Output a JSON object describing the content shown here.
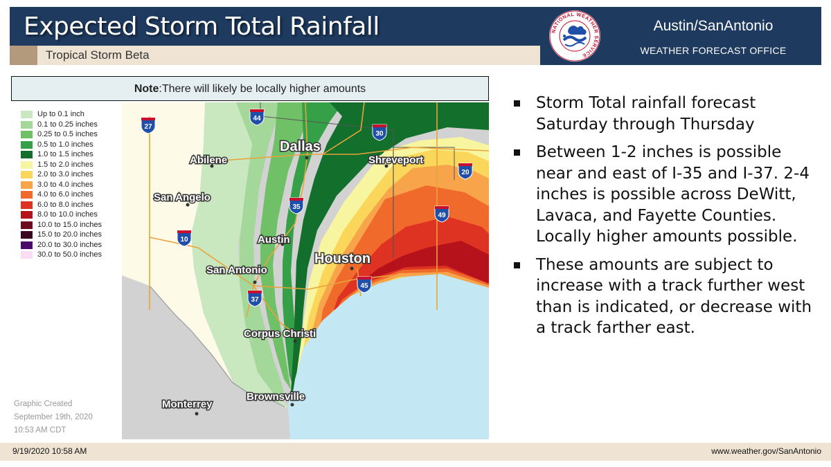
{
  "header": {
    "title": "Expected Storm Total Rainfall",
    "subtitle": "Tropical Storm Beta",
    "office_name": "Austin/SanAntonio",
    "office_subtitle": "WEATHER FORECAST OFFICE",
    "logo_text": "NATIONAL WEATHER SERVICE"
  },
  "map": {
    "note_label": "Note",
    "note_text": ":There will likely be locally higher amounts",
    "legend": [
      {
        "label": "Up to 0.1 inch",
        "color": "#c9e8c0"
      },
      {
        "label": "0.1 to 0.25 inches",
        "color": "#a4d89a"
      },
      {
        "label": "0.25 to 0.5 inches",
        "color": "#6fc066"
      },
      {
        "label": "0.5 to 1.0 inches",
        "color": "#35a047"
      },
      {
        "label": "1.0 to 1.5 inches",
        "color": "#136f2c"
      },
      {
        "label": "1.5 to 2.0 inches",
        "color": "#f8f5a0"
      },
      {
        "label": "2.0 to 3.0 inches",
        "color": "#fad65a"
      },
      {
        "label": "3.0 to 4.0 inches",
        "color": "#f7a44a"
      },
      {
        "label": "4.0 to 6.0 inches",
        "color": "#ef6a2b"
      },
      {
        "label": "6.0 to 8.0 inches",
        "color": "#de3222"
      },
      {
        "label": "8.0 to 10.0 inches",
        "color": "#b5121b"
      },
      {
        "label": "10.0 to 15.0 inches",
        "color": "#6e0c1f"
      },
      {
        "label": "15.0 to 20.0 inches",
        "color": "#3a0820"
      },
      {
        "label": "20.0 to 30.0 inches",
        "color": "#4b0a6b"
      },
      {
        "label": "30.0 to 50.0 inches",
        "color": "#fbdcf3"
      }
    ],
    "cities": {
      "dallas": "Dallas",
      "abilene": "Abilene",
      "shreveport": "Shreveport",
      "san_angelo": "San Angelo",
      "austin": "Austin",
      "houston": "Houston",
      "san_antonio": "San Antonio",
      "corpus_christi": "Corpus Christi",
      "brownsville": "Brownsville",
      "monterrey": "Monterrey"
    },
    "shields": {
      "i44": "44",
      "i27": "27",
      "i30": "30",
      "i20": "20",
      "i35": "35",
      "i49": "49",
      "i10": "10",
      "i45": "45",
      "i37": "37"
    },
    "created_lines": [
      "Graphic Created",
      "September 19th, 2020",
      "10:53 AM CDT"
    ]
  },
  "bullets": [
    "Storm Total rainfall forecast Saturday through Thursday",
    "Between 1-2 inches is possible near and east of I-35 and I-37. 2-4 inches is possible across DeWitt, Lavaca, and Fayette Counties. Locally higher amounts possible.",
    "These amounts are subject to increase with a track further west than is indicated, or decrease with a track farther east."
  ],
  "footer": {
    "timestamp": "9/19/2020 10:58 AM",
    "website": "www.weather.gov/SanAntonio"
  }
}
